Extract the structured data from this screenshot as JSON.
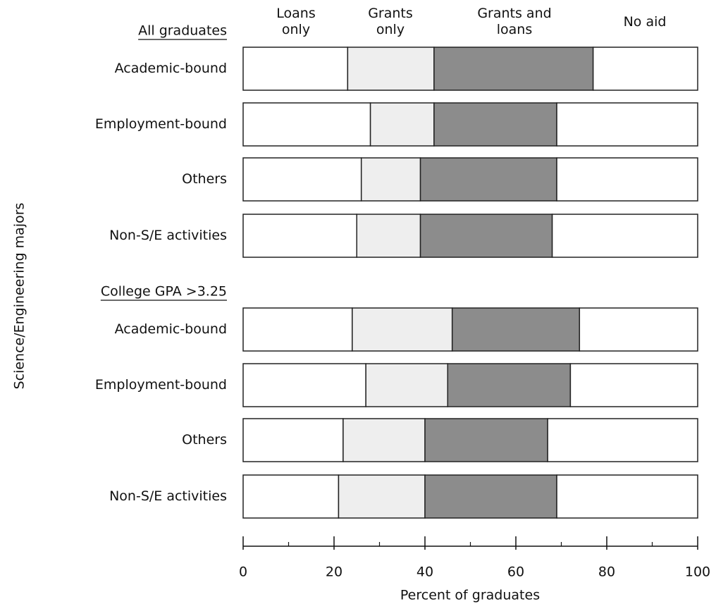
{
  "chart_data": {
    "type": "bar",
    "orientation": "horizontal",
    "stacked": true,
    "xlabel": "Percent of graduates",
    "ylabel": "Science/Engineering majors",
    "xlim": [
      0,
      100
    ],
    "xticks": [
      0,
      20,
      40,
      60,
      80,
      100
    ],
    "xticks_minor": [
      10,
      30,
      50,
      70,
      90
    ],
    "series": [
      {
        "name": "Loans only",
        "color": "#ffffff"
      },
      {
        "name": "Grants only",
        "color": "#eeeeee"
      },
      {
        "name": "Grants and loans",
        "color": "#8c8c8c"
      },
      {
        "name": "No aid",
        "color": "#ffffff"
      }
    ],
    "groups": [
      {
        "name": "All graduates",
        "categories": [
          "Academic-bound",
          "Employment-bound",
          "Others",
          "Non-S/E activities"
        ],
        "values": [
          [
            23,
            19,
            35,
            23
          ],
          [
            28,
            14,
            27,
            31
          ],
          [
            26,
            13,
            30,
            31
          ],
          [
            25,
            14,
            29,
            32
          ]
        ]
      },
      {
        "name": "College GPA >3.25",
        "categories": [
          "Academic-bound",
          "Employment-bound",
          "Others",
          "Non-S/E activities"
        ],
        "values": [
          [
            24,
            22,
            28,
            26
          ],
          [
            27,
            18,
            27,
            28
          ],
          [
            22,
            18,
            27,
            33
          ],
          [
            21,
            19,
            29,
            31
          ]
        ]
      }
    ]
  }
}
